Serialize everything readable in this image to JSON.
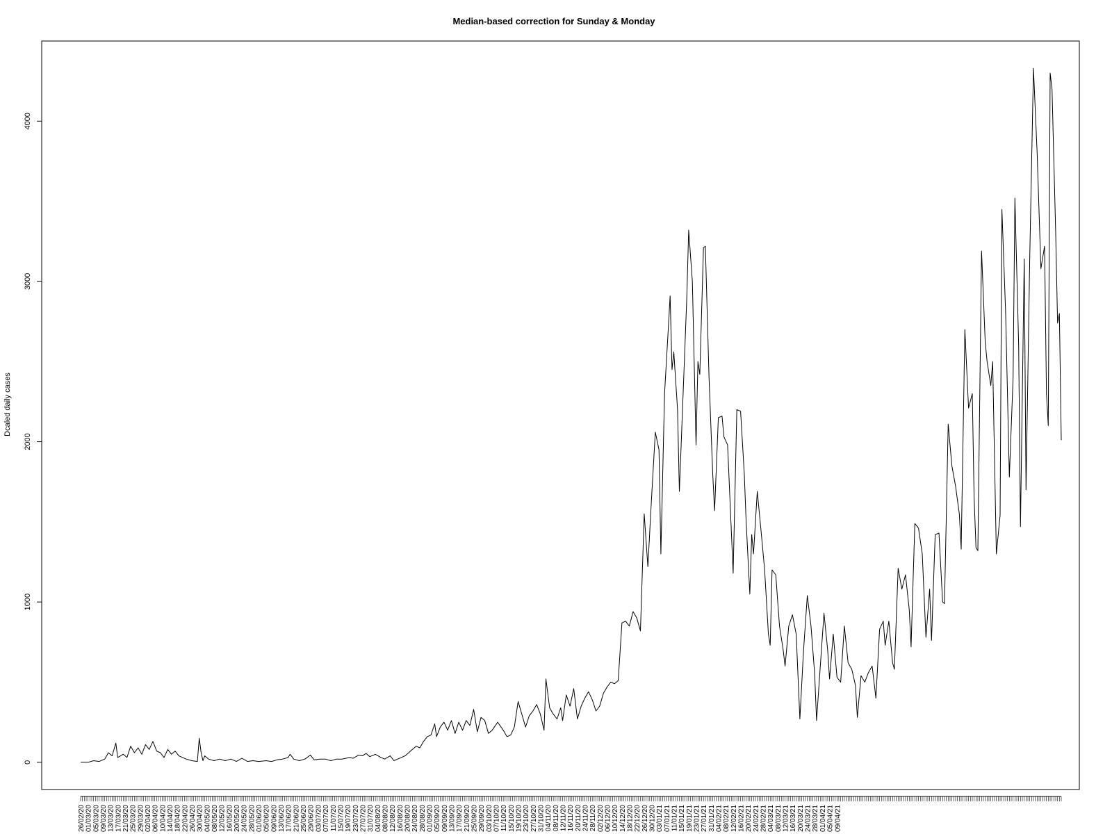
{
  "chart_data": {
    "type": "line",
    "title": "Median-based correction for Sunday & Monday",
    "xlabel": "",
    "ylabel": "Dcaled daily cases",
    "ylim": [
      -170,
      4500
    ],
    "yticks": [
      0,
      1000,
      2000,
      3000,
      4000
    ],
    "grid": false,
    "line_color": "#000000",
    "xtick_labels": [
      "26/02/20",
      "01/03/20",
      "05/03/20",
      "09/03/20",
      "13/03/20",
      "17/03/20",
      "21/03/20",
      "25/03/20",
      "29/03/20",
      "02/04/20",
      "06/04/20",
      "10/04/20",
      "14/04/20",
      "18/04/20",
      "22/04/20",
      "26/04/20",
      "30/04/20",
      "04/05/20",
      "08/05/20",
      "12/05/20",
      "16/05/20",
      "20/05/20",
      "24/05/20",
      "28/05/20",
      "01/06/20",
      "05/06/20",
      "09/06/20",
      "13/06/20",
      "17/06/20",
      "21/06/20",
      "25/06/20",
      "29/06/20",
      "03/07/20",
      "07/07/20",
      "11/07/20",
      "15/07/20",
      "19/07/20",
      "23/07/20",
      "27/07/20",
      "31/07/20",
      "04/08/20",
      "08/08/20",
      "12/08/20",
      "16/08/20",
      "20/08/20",
      "24/08/20",
      "28/08/20",
      "01/09/20",
      "05/09/20",
      "09/09/20",
      "13/09/20",
      "17/09/20",
      "21/09/20",
      "25/09/20",
      "29/09/20",
      "03/10/20",
      "07/10/20",
      "11/10/20",
      "15/10/20",
      "19/10/20",
      "23/10/20",
      "27/10/20",
      "31/10/20",
      "04/11/20",
      "08/11/20",
      "12/11/20",
      "16/11/20",
      "20/11/20",
      "24/11/20",
      "28/11/20",
      "02/12/20",
      "06/12/20",
      "10/12/20",
      "14/12/20",
      "18/12/20",
      "22/12/20",
      "26/12/20",
      "30/12/20",
      "03/01/21",
      "07/01/21",
      "11/01/21",
      "15/01/21",
      "19/01/21",
      "23/01/21",
      "27/01/21",
      "31/01/21",
      "04/02/21",
      "08/02/21",
      "12/02/21",
      "16/02/21",
      "20/02/21",
      "24/02/21",
      "28/02/21",
      "04/03/21",
      "08/03/21",
      "12/03/21",
      "16/03/21",
      "20/03/21",
      "24/03/21",
      "28/03/21",
      "01/04/21",
      "05/04/21",
      "09/04/21"
    ],
    "series_key_points": [
      [
        0,
        0
      ],
      [
        4,
        0
      ],
      [
        7,
        10
      ],
      [
        10,
        5
      ],
      [
        13,
        20
      ],
      [
        15,
        60
      ],
      [
        17,
        40
      ],
      [
        19,
        120
      ],
      [
        20,
        30
      ],
      [
        23,
        50
      ],
      [
        25,
        30
      ],
      [
        27,
        100
      ],
      [
        29,
        60
      ],
      [
        31,
        90
      ],
      [
        33,
        50
      ],
      [
        35,
        110
      ],
      [
        37,
        80
      ],
      [
        39,
        130
      ],
      [
        41,
        70
      ],
      [
        43,
        60
      ],
      [
        45,
        30
      ],
      [
        47,
        80
      ],
      [
        49,
        50
      ],
      [
        51,
        70
      ],
      [
        53,
        40
      ],
      [
        55,
        30
      ],
      [
        57,
        20
      ],
      [
        60,
        10
      ],
      [
        63,
        5
      ],
      [
        64,
        150
      ],
      [
        65,
        60
      ],
      [
        66,
        10
      ],
      [
        67,
        40
      ],
      [
        69,
        20
      ],
      [
        72,
        10
      ],
      [
        75,
        20
      ],
      [
        78,
        10
      ],
      [
        81,
        20
      ],
      [
        84,
        5
      ],
      [
        87,
        25
      ],
      [
        90,
        5
      ],
      [
        93,
        10
      ],
      [
        96,
        5
      ],
      [
        100,
        10
      ],
      [
        103,
        5
      ],
      [
        106,
        15
      ],
      [
        109,
        20
      ],
      [
        112,
        30
      ],
      [
        113,
        50
      ],
      [
        115,
        20
      ],
      [
        118,
        10
      ],
      [
        121,
        20
      ],
      [
        124,
        45
      ],
      [
        126,
        15
      ],
      [
        129,
        20
      ],
      [
        132,
        20
      ],
      [
        135,
        10
      ],
      [
        138,
        20
      ],
      [
        141,
        20
      ],
      [
        145,
        30
      ],
      [
        147,
        25
      ],
      [
        150,
        45
      ],
      [
        152,
        40
      ],
      [
        154,
        55
      ],
      [
        156,
        35
      ],
      [
        159,
        50
      ],
      [
        162,
        30
      ],
      [
        164,
        20
      ],
      [
        167,
        40
      ],
      [
        169,
        10
      ],
      [
        171,
        20
      ],
      [
        173,
        30
      ],
      [
        175,
        40
      ],
      [
        177,
        60
      ],
      [
        179,
        80
      ],
      [
        181,
        100
      ],
      [
        183,
        90
      ],
      [
        185,
        130
      ],
      [
        187,
        160
      ],
      [
        189,
        170
      ],
      [
        191,
        240
      ],
      [
        192,
        160
      ],
      [
        194,
        220
      ],
      [
        196,
        250
      ],
      [
        198,
        200
      ],
      [
        200,
        260
      ],
      [
        202,
        180
      ],
      [
        204,
        250
      ],
      [
        206,
        200
      ],
      [
        208,
        260
      ],
      [
        210,
        230
      ],
      [
        212,
        330
      ],
      [
        214,
        190
      ],
      [
        216,
        280
      ],
      [
        218,
        260
      ],
      [
        220,
        180
      ],
      [
        222,
        200
      ],
      [
        225,
        250
      ],
      [
        228,
        200
      ],
      [
        230,
        160
      ],
      [
        232,
        170
      ],
      [
        234,
        220
      ],
      [
        236,
        380
      ],
      [
        238,
        300
      ],
      [
        240,
        220
      ],
      [
        242,
        290
      ],
      [
        244,
        320
      ],
      [
        246,
        360
      ],
      [
        248,
        300
      ],
      [
        250,
        200
      ],
      [
        251,
        520
      ],
      [
        253,
        340
      ],
      [
        255,
        300
      ],
      [
        257,
        270
      ],
      [
        259,
        340
      ],
      [
        260,
        260
      ],
      [
        262,
        420
      ],
      [
        264,
        350
      ],
      [
        266,
        460
      ],
      [
        268,
        270
      ],
      [
        270,
        350
      ],
      [
        272,
        400
      ],
      [
        274,
        440
      ],
      [
        276,
        390
      ],
      [
        278,
        320
      ],
      [
        280,
        350
      ],
      [
        282,
        430
      ],
      [
        284,
        470
      ],
      [
        286,
        500
      ],
      [
        288,
        490
      ],
      [
        290,
        510
      ],
      [
        292,
        870
      ],
      [
        294,
        880
      ],
      [
        296,
        850
      ],
      [
        298,
        940
      ],
      [
        300,
        900
      ],
      [
        302,
        820
      ],
      [
        304,
        1550
      ],
      [
        306,
        1220
      ],
      [
        308,
        1650
      ],
      [
        310,
        2060
      ],
      [
        312,
        1950
      ],
      [
        313,
        1300
      ],
      [
        315,
        2300
      ],
      [
        317,
        2700
      ],
      [
        318,
        2910
      ],
      [
        319,
        2450
      ],
      [
        320,
        2560
      ],
      [
        322,
        2200
      ],
      [
        323,
        1690
      ],
      [
        325,
        2300
      ],
      [
        327,
        2900
      ],
      [
        328,
        3320
      ],
      [
        330,
        3000
      ],
      [
        332,
        1980
      ],
      [
        333,
        2500
      ],
      [
        334,
        2420
      ],
      [
        336,
        3210
      ],
      [
        337,
        3220
      ],
      [
        339,
        2400
      ],
      [
        341,
        1800
      ],
      [
        342,
        1570
      ],
      [
        344,
        2150
      ],
      [
        346,
        2160
      ],
      [
        347,
        2030
      ],
      [
        349,
        1980
      ],
      [
        351,
        1450
      ],
      [
        352,
        1180
      ],
      [
        354,
        2200
      ],
      [
        356,
        2190
      ],
      [
        358,
        1800
      ],
      [
        359,
        1500
      ],
      [
        361,
        1050
      ],
      [
        362,
        1420
      ],
      [
        363,
        1300
      ],
      [
        365,
        1690
      ],
      [
        367,
        1450
      ],
      [
        369,
        1200
      ],
      [
        370,
        1000
      ],
      [
        371,
        800
      ],
      [
        372,
        730
      ],
      [
        373,
        1200
      ],
      [
        375,
        1170
      ],
      [
        377,
        850
      ],
      [
        379,
        700
      ],
      [
        380,
        600
      ],
      [
        382,
        850
      ],
      [
        384,
        920
      ],
      [
        386,
        800
      ],
      [
        388,
        270
      ],
      [
        390,
        700
      ],
      [
        392,
        1040
      ],
      [
        394,
        850
      ],
      [
        396,
        550
      ],
      [
        397,
        260
      ],
      [
        399,
        600
      ],
      [
        401,
        930
      ],
      [
        403,
        700
      ],
      [
        404,
        520
      ],
      [
        406,
        800
      ],
      [
        408,
        530
      ],
      [
        410,
        500
      ],
      [
        412,
        850
      ],
      [
        414,
        620
      ],
      [
        416,
        580
      ],
      [
        418,
        480
      ],
      [
        419,
        280
      ],
      [
        421,
        540
      ],
      [
        423,
        500
      ],
      [
        425,
        560
      ],
      [
        427,
        600
      ],
      [
        429,
        400
      ],
      [
        431,
        830
      ],
      [
        433,
        880
      ],
      [
        434,
        730
      ],
      [
        436,
        880
      ],
      [
        438,
        620
      ],
      [
        439,
        580
      ],
      [
        441,
        1210
      ],
      [
        443,
        1080
      ],
      [
        445,
        1170
      ],
      [
        447,
        950
      ],
      [
        448,
        720
      ],
      [
        450,
        1490
      ],
      [
        452,
        1460
      ],
      [
        454,
        1300
      ],
      [
        456,
        780
      ],
      [
        458,
        1080
      ],
      [
        459,
        760
      ],
      [
        461,
        1420
      ],
      [
        463,
        1430
      ],
      [
        465,
        1000
      ],
      [
        466,
        990
      ],
      [
        468,
        2110
      ],
      [
        470,
        1850
      ],
      [
        472,
        1720
      ],
      [
        474,
        1550
      ],
      [
        475,
        1330
      ],
      [
        477,
        2700
      ],
      [
        479,
        2210
      ],
      [
        481,
        2300
      ],
      [
        482,
        1650
      ],
      [
        483,
        1340
      ],
      [
        484,
        1320
      ],
      [
        486,
        3190
      ],
      [
        488,
        2620
      ],
      [
        489,
        2500
      ],
      [
        491,
        2350
      ],
      [
        492,
        2500
      ],
      [
        494,
        1300
      ],
      [
        496,
        1540
      ],
      [
        497,
        3450
      ],
      [
        499,
        2800
      ],
      [
        501,
        1780
      ],
      [
        503,
        2400
      ],
      [
        504,
        3520
      ],
      [
        506,
        2600
      ],
      [
        507,
        1470
      ],
      [
        509,
        3140
      ],
      [
        510,
        1700
      ],
      [
        512,
        3160
      ],
      [
        514,
        4330
      ],
      [
        516,
        3800
      ],
      [
        518,
        3080
      ],
      [
        520,
        3220
      ],
      [
        521,
        2300
      ],
      [
        522,
        2100
      ],
      [
        523,
        4300
      ],
      [
        524,
        4200
      ],
      [
        526,
        3300
      ],
      [
        527,
        2740
      ],
      [
        528,
        2800
      ],
      [
        529,
        2010
      ]
    ]
  }
}
